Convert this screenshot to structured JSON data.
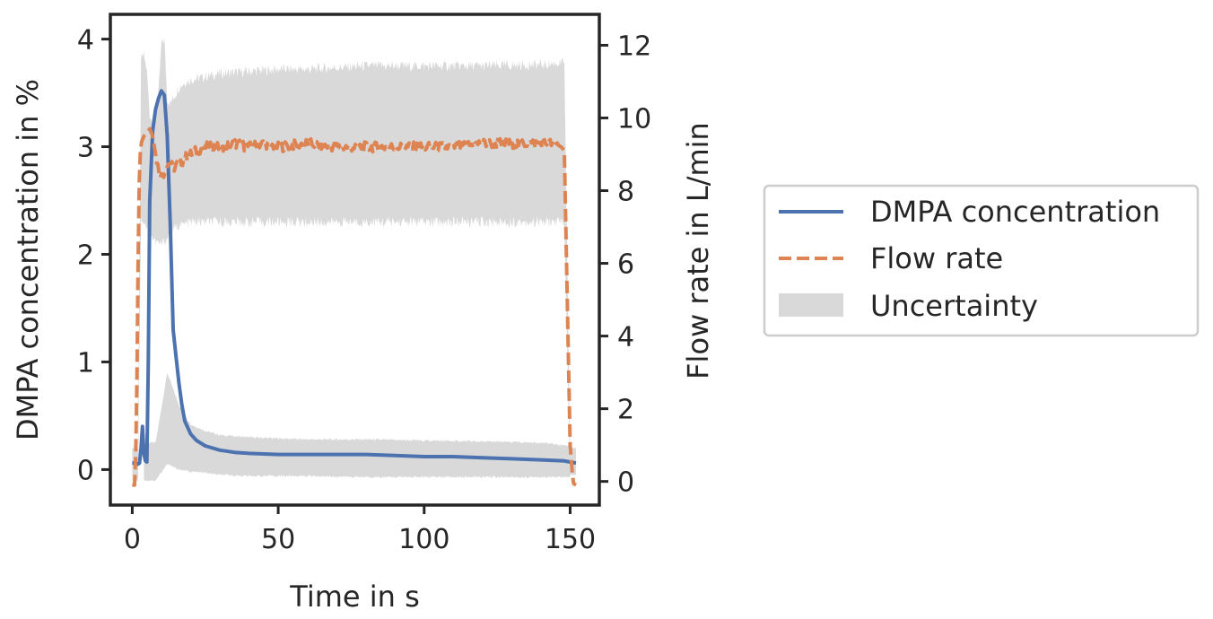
{
  "chart_data": {
    "type": "line",
    "xlabel": "Time in s",
    "ylabel_left": "DMPA concentration in %",
    "ylabel_right": "Flow rate in L/min",
    "xlim": [
      -7.5,
      160
    ],
    "ylim_left": [
      -0.33,
      4.23
    ],
    "ylim_right": [
      -0.65,
      12.85
    ],
    "xticks": [
      0,
      50,
      100,
      150
    ],
    "yticks_left": [
      0,
      1,
      2,
      3,
      4
    ],
    "yticks_right": [
      0,
      2,
      4,
      6,
      8,
      10,
      12
    ],
    "grid": false,
    "legend_position": "right, outside plot",
    "colors": {
      "concentration": "#4c72b0",
      "flow": "#dd8452",
      "uncertainty": "#d9d9d9",
      "axes": "#262626"
    },
    "series": [
      {
        "name": "DMPA concentration",
        "axis": "left",
        "style": "solid",
        "x": [
          0,
          1,
          2,
          2.5,
          3,
          3.5,
          4,
          4.5,
          5,
          5.5,
          6,
          7,
          8,
          9,
          10,
          11,
          12,
          13,
          14,
          15,
          16,
          17,
          18,
          20,
          22,
          25,
          30,
          35,
          40,
          50,
          60,
          70,
          80,
          90,
          100,
          110,
          120,
          130,
          140,
          148,
          150,
          152
        ],
        "y": [
          0.06,
          0.06,
          0.05,
          0.06,
          0.2,
          0.4,
          0.15,
          0.08,
          0.07,
          1.0,
          2.5,
          3.15,
          3.35,
          3.45,
          3.52,
          3.48,
          3.1,
          2.3,
          1.3,
          1.05,
          0.8,
          0.6,
          0.45,
          0.33,
          0.27,
          0.22,
          0.18,
          0.16,
          0.15,
          0.14,
          0.14,
          0.14,
          0.14,
          0.13,
          0.12,
          0.12,
          0.11,
          0.1,
          0.09,
          0.08,
          0.07,
          0.06
        ]
      },
      {
        "name": "Flow rate",
        "axis": "right",
        "style": "dashed",
        "x": [
          0,
          1,
          1.5,
          2,
          2.5,
          3,
          4,
          5,
          6,
          7,
          8,
          9,
          10,
          11,
          12,
          13,
          14,
          15,
          16,
          17,
          18,
          20,
          22,
          25,
          30,
          35,
          40,
          45,
          50,
          60,
          70,
          80,
          90,
          100,
          110,
          120,
          130,
          140,
          145,
          147,
          148,
          149,
          150,
          151,
          152
        ],
        "y": [
          -0.1,
          -0.1,
          2.0,
          6.0,
          8.8,
          9.3,
          9.5,
          9.6,
          9.7,
          9.5,
          9.0,
          8.6,
          8.4,
          8.5,
          8.7,
          8.8,
          8.6,
          8.7,
          8.8,
          8.8,
          8.9,
          9.0,
          9.1,
          9.2,
          9.2,
          9.3,
          9.2,
          9.3,
          9.2,
          9.3,
          9.2,
          9.2,
          9.2,
          9.2,
          9.2,
          9.3,
          9.3,
          9.3,
          9.3,
          9.2,
          9.1,
          5.0,
          1.0,
          -0.05,
          -0.1
        ]
      },
      {
        "name": "Uncertainty",
        "axis": "left",
        "style": "band",
        "x": [
          0,
          2,
          3,
          4,
          5,
          6,
          7,
          8,
          9,
          10,
          11,
          12,
          13,
          14,
          15,
          16,
          18,
          20,
          25,
          30,
          40,
          50,
          60,
          80,
          100,
          120,
          140,
          148,
          150,
          152
        ],
        "upper": [
          0.2,
          0.2,
          3.8,
          3.85,
          3.7,
          3.3,
          3.2,
          3.4,
          3.5,
          3.95,
          4.0,
          3.45,
          3.4,
          3.45,
          3.5,
          3.55,
          3.6,
          3.62,
          3.65,
          3.68,
          3.7,
          3.72,
          3.72,
          3.75,
          3.75,
          3.75,
          3.76,
          3.78,
          0.2,
          0.2
        ],
        "lower": [
          -0.1,
          -0.1,
          2.35,
          2.3,
          2.25,
          2.2,
          2.15,
          2.12,
          2.1,
          2.1,
          2.12,
          2.15,
          2.2,
          2.22,
          2.25,
          2.27,
          2.28,
          2.3,
          2.3,
          2.3,
          2.3,
          2.3,
          2.3,
          2.3,
          2.3,
          2.3,
          2.3,
          2.3,
          -0.05,
          -0.05
        ],
        "lower_tail_x": [
          4,
          8,
          12,
          16,
          20,
          25,
          30,
          40,
          60,
          80,
          100,
          120,
          140,
          150
        ],
        "lower_tail_upper": [
          0.25,
          0.25,
          0.9,
          0.6,
          0.42,
          0.36,
          0.32,
          0.3,
          0.28,
          0.28,
          0.27,
          0.26,
          0.25,
          0.22
        ],
        "lower_tail_lower": [
          -0.1,
          -0.1,
          0.05,
          0.0,
          -0.02,
          -0.03,
          -0.05,
          -0.06,
          -0.06,
          -0.07,
          -0.07,
          -0.07,
          -0.07,
          -0.07
        ]
      }
    ],
    "legend": [
      {
        "label": "DMPA concentration",
        "style": "solid"
      },
      {
        "label": "Flow rate",
        "style": "dashed"
      },
      {
        "label": "Uncertainty",
        "style": "band"
      }
    ]
  }
}
